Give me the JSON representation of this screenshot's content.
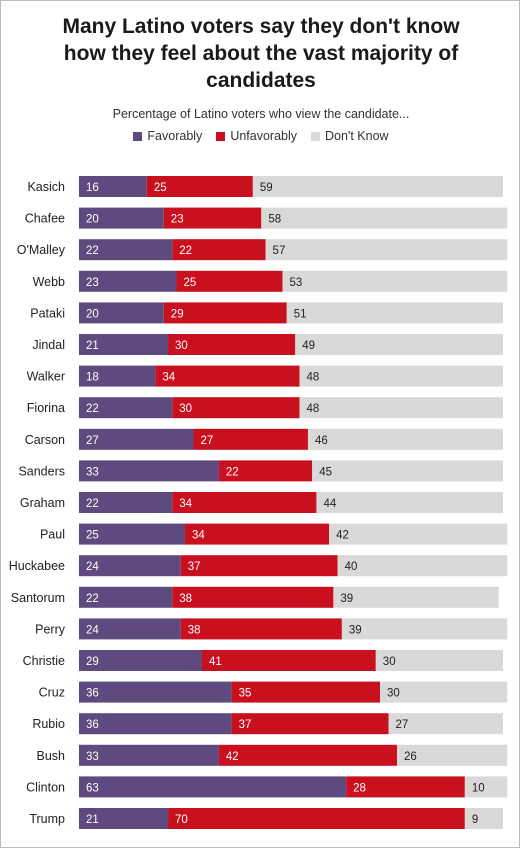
{
  "title": "Many Latino voters say they don't know how they feel about the vast majority of candidates",
  "subtitle": "Percentage of Latino voters who view the candidate...",
  "colors": {
    "favorably": "#5e4a7e",
    "unfavorably": "#c8101e",
    "dont_know": "#d9d9d9"
  },
  "chart_data": {
    "type": "bar",
    "stacked": true,
    "orientation": "horizontal",
    "legend": "top",
    "grid": false,
    "xlim": [
      0,
      100
    ],
    "categories": [
      "Kasich",
      "Chafee",
      "O'Malley",
      "Webb",
      "Pataki",
      "Jindal",
      "Walker",
      "Fiorina",
      "Carson",
      "Sanders",
      "Graham",
      "Paul",
      "Huckabee",
      "Santorum",
      "Perry",
      "Christie",
      "Cruz",
      "Rubio",
      "Bush",
      "Clinton",
      "Trump"
    ],
    "series": [
      {
        "name": "Favorably",
        "values": [
          16,
          20,
          22,
          23,
          20,
          21,
          18,
          22,
          27,
          33,
          22,
          25,
          24,
          22,
          24,
          29,
          36,
          36,
          33,
          63,
          21
        ]
      },
      {
        "name": "Unfavorably",
        "values": [
          25,
          23,
          22,
          25,
          29,
          30,
          34,
          30,
          27,
          22,
          34,
          34,
          37,
          38,
          38,
          41,
          35,
          37,
          42,
          28,
          70
        ]
      },
      {
        "name": "Don't Know",
        "values": [
          59,
          58,
          57,
          53,
          51,
          49,
          48,
          48,
          46,
          45,
          44,
          42,
          40,
          39,
          39,
          30,
          30,
          27,
          26,
          10,
          9
        ]
      }
    ]
  }
}
